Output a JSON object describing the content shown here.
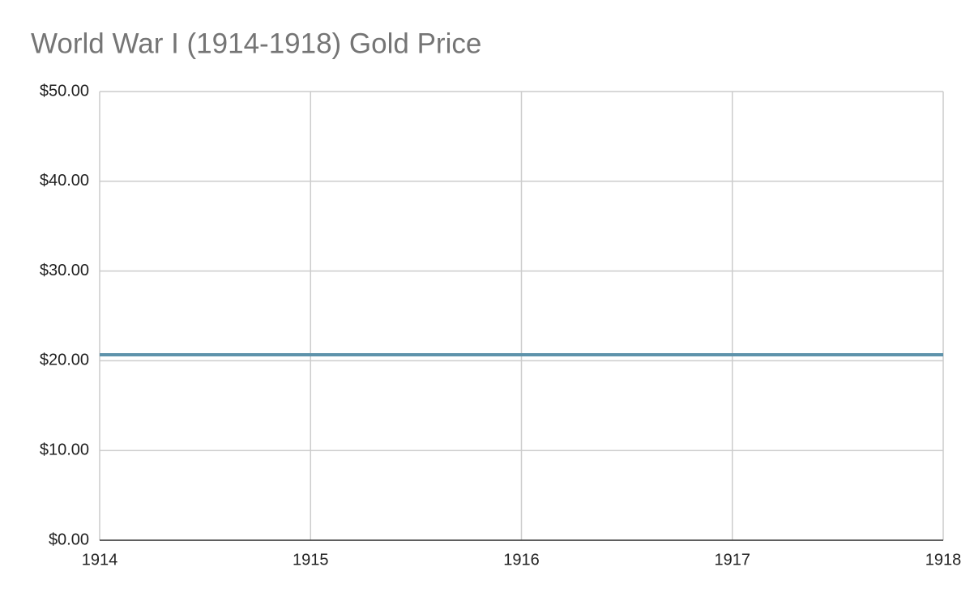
{
  "chart_data": {
    "type": "line",
    "title": "World War I (1914-1918) Gold Price",
    "x": [
      1914,
      1915,
      1916,
      1917,
      1918
    ],
    "values": [
      20.67,
      20.67,
      20.67,
      20.67,
      20.67
    ],
    "color": "#5e93ab",
    "xlim": [
      1914,
      1918
    ],
    "xticks": [
      1914,
      1915,
      1916,
      1917,
      1918
    ],
    "ylim": [
      0,
      50
    ],
    "yticks": [
      {
        "value": 0,
        "label": "$0.00"
      },
      {
        "value": 10,
        "label": "$10.00"
      },
      {
        "value": 20,
        "label": "$20.00"
      },
      {
        "value": 30,
        "label": "$30.00"
      },
      {
        "value": 40,
        "label": "$40.00"
      },
      {
        "value": 50,
        "label": "$50.00"
      }
    ],
    "grid": true
  }
}
